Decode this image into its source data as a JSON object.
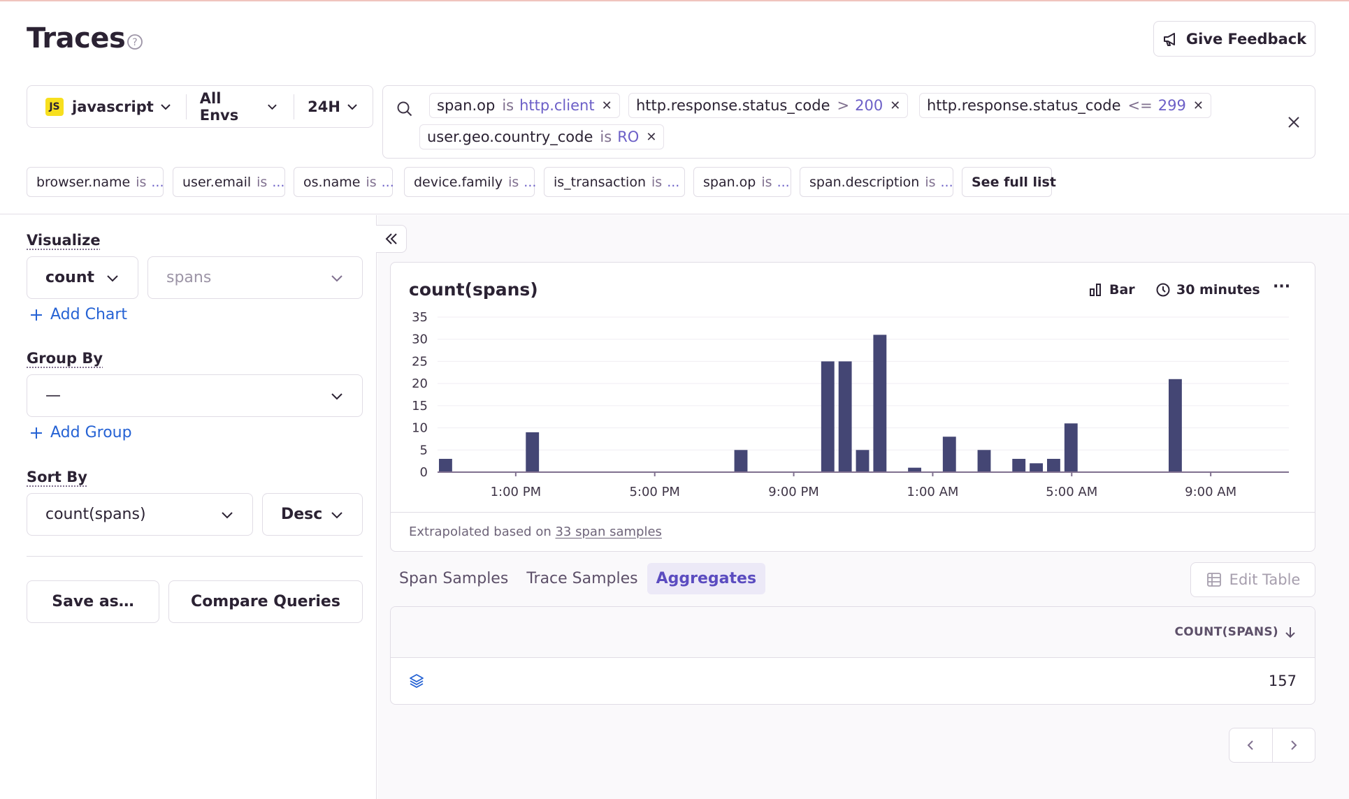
{
  "page": {
    "title": "Traces"
  },
  "header": {
    "feedback_label": "Give Feedback"
  },
  "filters": {
    "project_badge": "JS",
    "project": "javascript",
    "environment": "All Envs",
    "period": "24H"
  },
  "search": {
    "tokens": [
      {
        "key": "span.op",
        "op": "is",
        "value": "http.client"
      },
      {
        "key": "http.response.status_code",
        "op": ">",
        "value": "200"
      },
      {
        "key": "http.response.status_code",
        "op": "<=",
        "value": "299"
      },
      {
        "key": "user.geo.country_code",
        "op": "is",
        "value": "RO"
      }
    ],
    "suggestions": [
      {
        "key": "browser.name",
        "op": "is",
        "ell": "..."
      },
      {
        "key": "user.email",
        "op": "is",
        "ell": "..."
      },
      {
        "key": "os.name",
        "op": "is",
        "ell": "..."
      },
      {
        "key": "device.family",
        "op": "is",
        "ell": "..."
      },
      {
        "key": "is_transaction",
        "op": "is",
        "ell": "..."
      },
      {
        "key": "span.op",
        "op": "is",
        "ell": "..."
      },
      {
        "key": "span.description",
        "op": "is",
        "ell": "..."
      }
    ],
    "see_full_list": "See full list"
  },
  "sidebar": {
    "visualize_label": "Visualize",
    "aggregate": "count",
    "field": "spans",
    "add_chart": "Add Chart",
    "group_by_label": "Group By",
    "group_by_value": "—",
    "add_group": "Add Group",
    "sort_by_label": "Sort By",
    "sort_field": "count(spans)",
    "sort_order": "Desc",
    "save_as": "Save as…",
    "compare": "Compare Queries"
  },
  "chart": {
    "title": "count(spans)",
    "type_label": "Bar",
    "interval_label": "30 minutes",
    "more": "···",
    "footer_prefix": "Extrapolated based on",
    "footer_link": "33 span samples"
  },
  "chart_data": {
    "type": "bar",
    "title": "count(spans)",
    "ylim": [
      0,
      35
    ],
    "yticks": [
      "0",
      "5",
      "10",
      "15",
      "20",
      "25",
      "30",
      "35"
    ],
    "xticks": [
      {
        "label": "1:00 PM",
        "slot": 4.5
      },
      {
        "label": "5:00 PM",
        "slot": 12.5
      },
      {
        "label": "9:00 PM",
        "slot": 20.5
      },
      {
        "label": "1:00 AM",
        "slot": 28.5
      },
      {
        "label": "5:00 AM",
        "slot": 36.5
      },
      {
        "label": "9:00 AM",
        "slot": 44.5
      }
    ],
    "slots": 49,
    "bars": [
      {
        "slot": 0,
        "value": 3
      },
      {
        "slot": 5,
        "value": 9
      },
      {
        "slot": 17,
        "value": 5
      },
      {
        "slot": 22,
        "value": 25
      },
      {
        "slot": 23,
        "value": 25
      },
      {
        "slot": 24,
        "value": 5
      },
      {
        "slot": 25,
        "value": 31
      },
      {
        "slot": 27,
        "value": 1
      },
      {
        "slot": 29,
        "value": 8
      },
      {
        "slot": 31,
        "value": 5
      },
      {
        "slot": 33,
        "value": 3
      },
      {
        "slot": 34,
        "value": 2
      },
      {
        "slot": 35,
        "value": 3
      },
      {
        "slot": 36,
        "value": 11
      },
      {
        "slot": 42,
        "value": 21
      }
    ],
    "bar_color": "#444674",
    "grid": true
  },
  "tabs": [
    {
      "label": "Span Samples",
      "active": false
    },
    {
      "label": "Trace Samples",
      "active": false
    },
    {
      "label": "Aggregates",
      "active": true
    }
  ],
  "edit_table": "Edit Table",
  "table": {
    "column": "COUNT(SPANS)",
    "rows": [
      {
        "value": "157"
      }
    ]
  },
  "colors": {
    "accent": "#6c5fc7",
    "link": "#2562d4",
    "bar": "#444674"
  }
}
